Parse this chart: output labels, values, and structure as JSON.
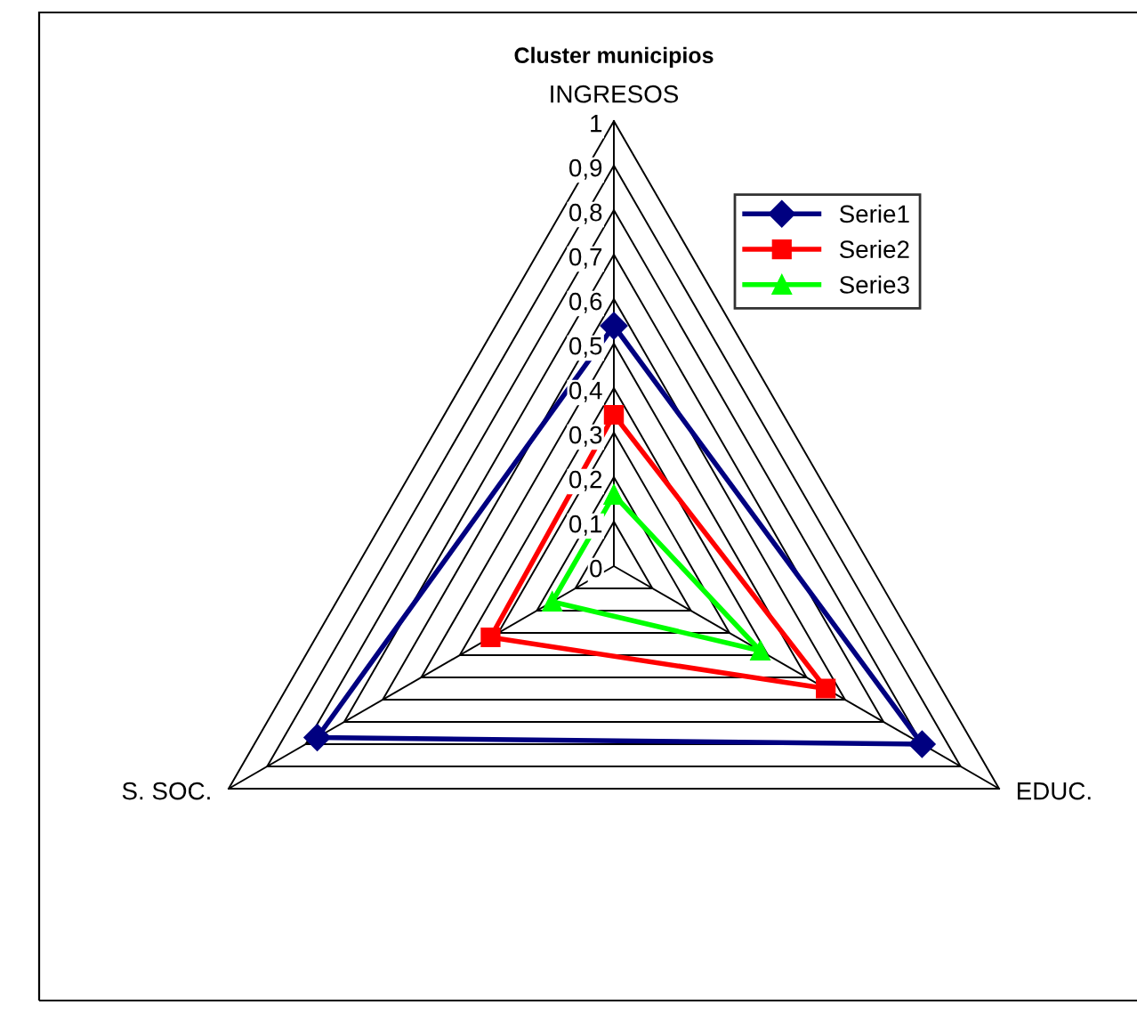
{
  "chart_data": {
    "type": "radar",
    "title": "Cluster municipios",
    "categories": [
      "INGRESOS",
      "EDUC.",
      "S. SOC."
    ],
    "series": [
      {
        "name": "Serie1",
        "color": "#000080",
        "marker": "diamond",
        "values": [
          0.54,
          0.8,
          0.77
        ]
      },
      {
        "name": "Serie2",
        "color": "#ff0000",
        "marker": "square",
        "values": [
          0.34,
          0.55,
          0.32
        ]
      },
      {
        "name": "Serie3",
        "color": "#00ff00",
        "marker": "triangle",
        "values": [
          0.16,
          0.38,
          0.16
        ]
      }
    ],
    "ylim": [
      0,
      1
    ],
    "yticks": [
      0,
      {
        "value": 0.1,
        "label": "0,1"
      },
      {
        "value": 0.2,
        "label": "0,2"
      },
      {
        "value": 0.3,
        "label": "0,3"
      },
      {
        "value": 0.4,
        "label": "0,4"
      },
      {
        "value": 0.5,
        "label": "0,5"
      },
      {
        "value": 0.6,
        "label": "0,6"
      },
      {
        "value": 0.7,
        "label": "0,7"
      },
      {
        "value": 0.8,
        "label": "0,8"
      },
      {
        "value": 0.9,
        "label": "0,9"
      },
      1
    ],
    "grid": true,
    "legend": "top right"
  }
}
